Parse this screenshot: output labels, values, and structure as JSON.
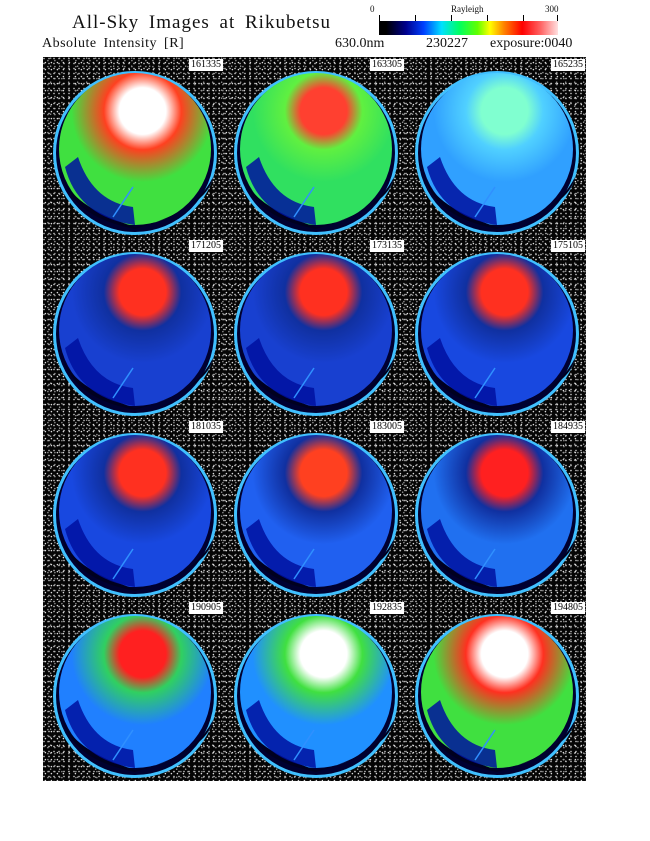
{
  "header": {
    "title": "All-Sky Images at Rikubetsu",
    "subtitle": "Absolute Intensity [R]",
    "wavelength": "630.0nm",
    "date": "230227",
    "exposure": "exposure:0040"
  },
  "colorbar": {
    "label": "Rayleigh",
    "min": "0",
    "max": "300",
    "colors": [
      "#000000",
      "#00008c",
      "#00e0ff",
      "#00ff60",
      "#ffff00",
      "#ff0000",
      "#ffe0e0"
    ]
  },
  "panels": [
    {
      "time": "161335",
      "base": "#40e040",
      "edge": "#ff4020",
      "top": "#ffffff"
    },
    {
      "time": "163305",
      "base": "#30e060",
      "edge": "#60f040",
      "top": "#ff4030"
    },
    {
      "time": "165235",
      "base": "#30a0ff",
      "edge": "#50d0ff",
      "top": "#80ffd0"
    },
    {
      "time": "171205",
      "base": "#1840d0",
      "edge": "#1030a0",
      "top": "#ff3020"
    },
    {
      "time": "173135",
      "base": "#1840d0",
      "edge": "#1030a0",
      "top": "#ff3020"
    },
    {
      "time": "175105",
      "base": "#1848e0",
      "edge": "#1030a0",
      "top": "#ff3020"
    },
    {
      "time": "181035",
      "base": "#1848e0",
      "edge": "#1030a0",
      "top": "#ff3020"
    },
    {
      "time": "183005",
      "base": "#2060f0",
      "edge": "#1030a0",
      "top": "#ff4020"
    },
    {
      "time": "184935",
      "base": "#2070f0",
      "edge": "#1030a0",
      "top": "#ff2020"
    },
    {
      "time": "190905",
      "base": "#2080ff",
      "edge": "#30d060",
      "top": "#ff2020"
    },
    {
      "time": "192835",
      "base": "#2090ff",
      "edge": "#40e040",
      "top": "#ffffff"
    },
    {
      "time": "194805",
      "base": "#40e040",
      "edge": "#ff3020",
      "top": "#ffffff"
    }
  ]
}
